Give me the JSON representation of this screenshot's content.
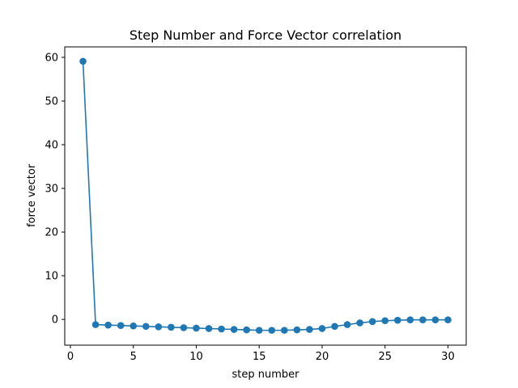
{
  "colors": {
    "series": "#1f77b4",
    "axes": "#000000",
    "background": "#ffffff"
  },
  "chart_data": {
    "type": "line",
    "title": "Step Number and Force Vector correlation",
    "xlabel": "step number",
    "ylabel": "force vector",
    "xlim": [
      -0.45,
      31.45
    ],
    "ylim": [
      -5.9,
      62.4
    ],
    "xticks": [
      0,
      5,
      10,
      15,
      20,
      25,
      30
    ],
    "yticks": [
      0,
      10,
      20,
      30,
      40,
      50,
      60
    ],
    "grid": false,
    "legend": "none",
    "marker": "circle",
    "x": [
      1,
      2,
      3,
      4,
      5,
      6,
      7,
      8,
      9,
      10,
      11,
      12,
      13,
      14,
      15,
      16,
      17,
      18,
      19,
      20,
      21,
      22,
      23,
      24,
      25,
      26,
      27,
      28,
      29,
      30
    ],
    "y": [
      59.1,
      -1.2,
      -1.3,
      -1.4,
      -1.5,
      -1.6,
      -1.7,
      -1.8,
      -1.9,
      -2.0,
      -2.1,
      -2.2,
      -2.3,
      -2.4,
      -2.5,
      -2.5,
      -2.5,
      -2.4,
      -2.3,
      -2.1,
      -1.6,
      -1.2,
      -0.8,
      -0.5,
      -0.3,
      -0.2,
      -0.1,
      -0.1,
      -0.1,
      -0.1
    ]
  }
}
